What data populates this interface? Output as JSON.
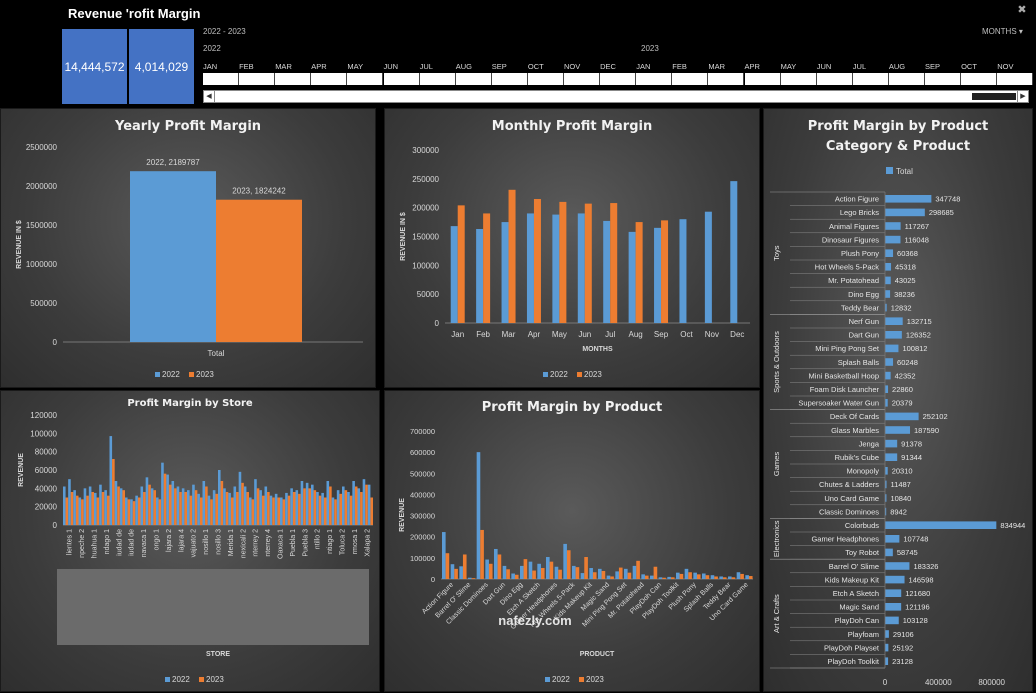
{
  "header": {
    "title": "Revenue  'rofit Margin",
    "kpi_revenue": "14,444,572",
    "kpi_profit": "4,014,029"
  },
  "timeline": {
    "range_label": "2022 - 2023",
    "year_2022": "2022",
    "year_2023": "2023",
    "period_selector": "MONTHS",
    "months": [
      "JAN",
      "FEB",
      "MAR",
      "APR",
      "MAY",
      "JUN",
      "JUL",
      "AUG",
      "SEP",
      "OCT",
      "NOV",
      "DEC",
      "JAN",
      "FEB",
      "MAR",
      "APR",
      "MAY",
      "JUN",
      "JUL",
      "AUG",
      "SEP",
      "OCT",
      "NOV"
    ],
    "filter_icon": "filter-clear-icon",
    "dropdown_icon": "chevron-down-icon"
  },
  "colors": {
    "s2022": "#5b9bd5",
    "s2023": "#ed7d31",
    "kpi": "#4472c4"
  },
  "chart_data": [
    {
      "id": "yearly",
      "type": "bar",
      "title": "Yearly Profit Margin",
      "ylabel": "REVENUE IN $",
      "categories": [
        "Total"
      ],
      "series": [
        {
          "name": "2022",
          "values": [
            2189787
          ]
        },
        {
          "name": "2023",
          "values": [
            1824242
          ]
        }
      ],
      "data_labels": [
        "2022, 2189787",
        "2023, 1824242"
      ],
      "ylim": [
        0,
        2500000
      ],
      "yticks": [
        "0",
        "500000",
        "1000000",
        "1500000",
        "2000000",
        "2500000"
      ],
      "legend": "bottom"
    },
    {
      "id": "monthly",
      "type": "bar",
      "title": "Monthly Profit Margin",
      "ylabel": "REVENUE IN $",
      "xlabel": "MONTHS",
      "categories": [
        "Jan",
        "Feb",
        "Mar",
        "Apr",
        "May",
        "Jun",
        "Jul",
        "Aug",
        "Sep",
        "Oct",
        "Nov",
        "Dec"
      ],
      "series": [
        {
          "name": "2022",
          "values": [
            168000,
            163000,
            175000,
            190000,
            188000,
            190000,
            177000,
            158000,
            165000,
            180000,
            193000,
            246000
          ]
        },
        {
          "name": "2023",
          "values": [
            204000,
            190000,
            231000,
            215000,
            210000,
            207000,
            208000,
            175000,
            178000,
            null,
            null,
            null
          ]
        }
      ],
      "ylim": [
        0,
        300000
      ],
      "yticks": [
        "0",
        "50000",
        "100000",
        "150000",
        "200000",
        "250000",
        "300000"
      ],
      "legend": "bottom"
    },
    {
      "id": "store",
      "type": "bar",
      "title": "Profit Margin by Store",
      "ylabel": "REVENUE",
      "xlabel": "STORE",
      "tick_labels": [
        "lientes 1",
        "npeche 2",
        "huahua 1",
        "ndago 1",
        "iudad de",
        "iudad de",
        "navaca 1",
        "ongo 1",
        "lajara 2",
        "lajara 4",
        "vajuato 2",
        "nosillo 1",
        "nosillo 3",
        "Merida 1",
        "nexicali 2",
        "nterrey 2",
        "nterrey 4",
        "Oaxaca 1",
        "Puebla 1",
        "Puebla 3",
        "ntillo 2",
        "ntiago 1",
        "Toluca 2",
        "rmosa 1",
        "Xalapa 2"
      ],
      "series": [
        {
          "name": "2022",
          "values": [
            42000,
            50000,
            38000,
            30000,
            40000,
            42000,
            35000,
            44000,
            38000,
            97000,
            48000,
            40000,
            30000,
            28000,
            32000,
            42000,
            52000,
            40000,
            30000,
            68000,
            55000,
            48000,
            42000,
            40000,
            38000,
            44000,
            34000,
            48000,
            32000,
            38000,
            60000,
            40000,
            35000,
            42000,
            58000,
            42000,
            30000,
            50000,
            38000,
            42000,
            32000,
            34000,
            30000,
            35000,
            40000,
            38000,
            48000,
            46000,
            44000,
            36000,
            35000,
            48000,
            30000,
            38000,
            42000,
            36000,
            48000,
            40000,
            50000,
            44000
          ]
        },
        {
          "name": "2023",
          "values": [
            30000,
            36000,
            32000,
            28000,
            32000,
            36000,
            30000,
            36000,
            32000,
            72000,
            42000,
            38000,
            28000,
            26000,
            30000,
            36000,
            44000,
            38000,
            28000,
            56000,
            44000,
            40000,
            36000,
            36000,
            32000,
            38000,
            30000,
            42000,
            28000,
            34000,
            48000,
            36000,
            30000,
            36000,
            46000,
            36000,
            28000,
            40000,
            32000,
            36000,
            30000,
            30000,
            28000,
            32000,
            36000,
            34000,
            40000,
            40000,
            38000,
            32000,
            30000,
            42000,
            28000,
            34000,
            38000,
            32000,
            42000,
            36000,
            44000,
            30000
          ]
        }
      ],
      "ylim": [
        0,
        120000
      ],
      "yticks": [
        "0",
        "20000",
        "40000",
        "60000",
        "80000",
        "100000",
        "120000"
      ],
      "legend": "bottom"
    },
    {
      "id": "product",
      "type": "bar",
      "title": "Profit Margin by Product",
      "ylabel": "REVENUE",
      "xlabel": "PRODUCT",
      "tick_labels": [
        "Action Figure",
        "Barrel O' Slime",
        "Classic Dominoes",
        "Dart Gun",
        "Dino Egg",
        "Etch A Sketch",
        "Gamer Headphones",
        "Hot Wheels 5-Pack",
        "Kids Makeup Kit",
        "Magic Sand",
        "Mini Ping Pong Set",
        "Mr. Potatohead",
        "PlayDoh Can",
        "PlayDoh Toolkit",
        "Plush Pony",
        "Splash Balls",
        "Teddy Bear",
        "Uno Card Game"
      ],
      "series": [
        {
          "name": "2022",
          "values": [
            222000,
            70000,
            60000,
            6000,
            600000,
            92000,
            142000,
            62000,
            26000,
            62000,
            82000,
            72000,
            104000,
            58000,
            166000,
            62000,
            28000,
            52000,
            48000,
            16000,
            36000,
            48000,
            62000,
            22000,
            16000,
            8000,
            10000,
            30000,
            48000,
            30000,
            26000,
            18000,
            12000,
            12000,
            32000,
            18000
          ]
        },
        {
          "name": "2023",
          "values": [
            122000,
            48000,
            116000,
            4000,
            232000,
            72000,
            116000,
            46000,
            20000,
            94000,
            40000,
            52000,
            82000,
            44000,
            136000,
            56000,
            104000,
            32000,
            38000,
            12000,
            54000,
            30000,
            86000,
            16000,
            58000,
            6000,
            8000,
            24000,
            32000,
            22000,
            18000,
            12000,
            8000,
            8000,
            24000,
            14000
          ]
        }
      ],
      "ylim": [
        0,
        700000
      ],
      "yticks": [
        "0",
        "100000",
        "200000",
        "300000",
        "400000",
        "500000",
        "600000",
        "700000"
      ],
      "legend": "bottom"
    },
    {
      "id": "category",
      "type": "bar",
      "orientation": "horizontal",
      "title": "Profit Margin by Product Category & Product",
      "title_line1": "Profit Margin by Product",
      "title_line2": "Category & Product",
      "legend_label": "Total",
      "xticks": [
        "0",
        "400000",
        "800000"
      ],
      "xlim": [
        0,
        900000
      ],
      "groups": [
        {
          "name": "Toys",
          "items": [
            {
              "label": "Action Figure",
              "value": 347748
            },
            {
              "label": "Lego Bricks",
              "value": 298685
            },
            {
              "label": "Animal Figures",
              "value": 117267
            },
            {
              "label": "Dinosaur Figures",
              "value": 116048
            },
            {
              "label": "Plush Pony",
              "value": 60368
            },
            {
              "label": "Hot Wheels 5-Pack",
              "value": 45318
            },
            {
              "label": "Mr. Potatohead",
              "value": 43025
            },
            {
              "label": "Dino Egg",
              "value": 38236
            },
            {
              "label": "Teddy Bear",
              "value": 12832
            }
          ]
        },
        {
          "name": "Sports & Outdoors",
          "items": [
            {
              "label": "Nerf Gun",
              "value": 132715
            },
            {
              "label": "Dart Gun",
              "value": 126352
            },
            {
              "label": "Mini Ping Pong Set",
              "value": 100812
            },
            {
              "label": "Splash Balls",
              "value": 60248
            },
            {
              "label": "Mini Basketball Hoop",
              "value": 42352
            },
            {
              "label": "Foam Disk Launcher",
              "value": 22860
            },
            {
              "label": "Supersoaker Water Gun",
              "value": 20379
            }
          ]
        },
        {
          "name": "Games",
          "items": [
            {
              "label": "Deck Of Cards",
              "value": 252102
            },
            {
              "label": "Glass Marbles",
              "value": 187590
            },
            {
              "label": "Jenga",
              "value": 91378
            },
            {
              "label": "Rubik's Cube",
              "value": 91344
            },
            {
              "label": "Monopoly",
              "value": 20310
            },
            {
              "label": "Chutes & Ladders",
              "value": 11487
            },
            {
              "label": "Uno Card Game",
              "value": 10840
            },
            {
              "label": "Classic Dominoes",
              "value": 8942
            }
          ]
        },
        {
          "name": "Electronics",
          "items": [
            {
              "label": "Colorbuds",
              "value": 834944
            },
            {
              "label": "Gamer Headphones",
              "value": 107748
            },
            {
              "label": "Toy Robot",
              "value": 58745
            }
          ]
        },
        {
          "name": "Art & Crafts",
          "items": [
            {
              "label": "Barrel O' Slime",
              "value": 183326
            },
            {
              "label": "Kids Makeup Kit",
              "value": 146598
            },
            {
              "label": "Etch A Sketch",
              "value": 121680
            },
            {
              "label": "Magic Sand",
              "value": 121196
            },
            {
              "label": "PlayDoh Can",
              "value": 103128
            },
            {
              "label": "Playfoam",
              "value": 29106
            },
            {
              "label": "PlayDoh Playset",
              "value": 25192
            },
            {
              "label": "PlayDoh Toolkit",
              "value": 23128
            }
          ]
        }
      ]
    }
  ],
  "watermark": "nafezly.com"
}
